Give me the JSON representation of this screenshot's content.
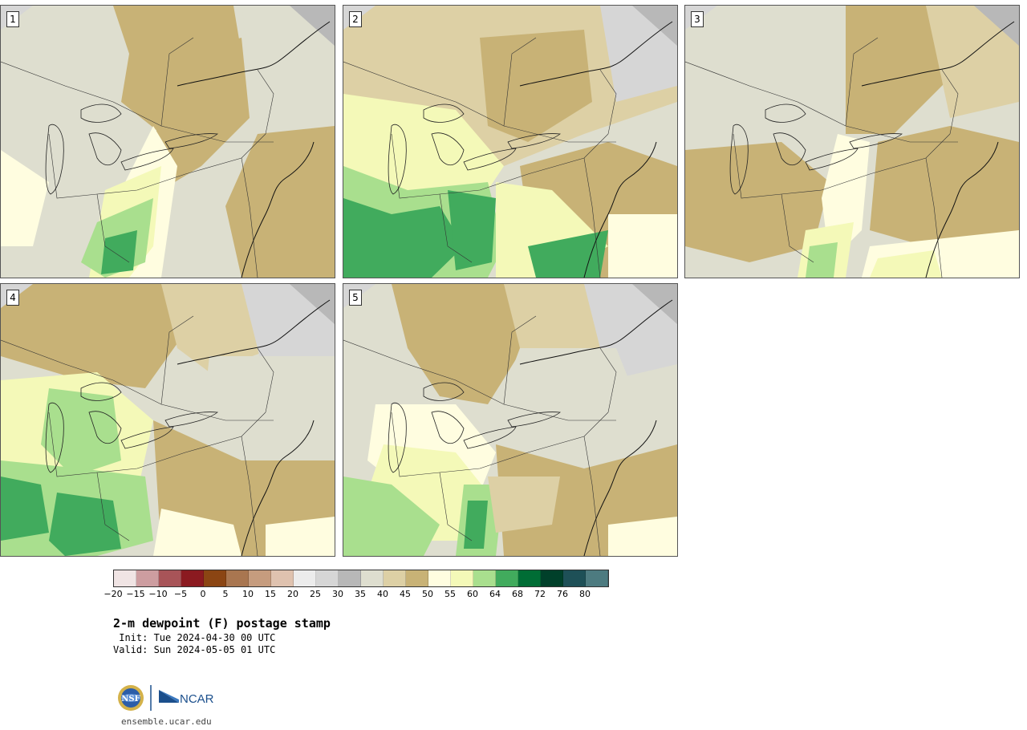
{
  "panels": [
    {
      "label": "1",
      "variant": 1
    },
    {
      "label": "2",
      "variant": 2
    },
    {
      "label": "3",
      "variant": 3
    },
    {
      "label": "4",
      "variant": 4
    },
    {
      "label": "5",
      "variant": 5
    }
  ],
  "colorbar": {
    "colors": [
      "#f0e4e4",
      "#cd9da0",
      "#a85458",
      "#8b1a20",
      "#8b4513",
      "#a97650",
      "#c69c7e",
      "#dfc2af",
      "#ececec",
      "#d6d6d6",
      "#b8b8b8",
      "#dedecf",
      "#ddd0a5",
      "#c8b276",
      "#fffde0",
      "#f4f9b8",
      "#a9df8e",
      "#41ab5d",
      "#006d35",
      "#00402a",
      "#1e5057",
      "#4d7b80"
    ],
    "ticks": [
      "−20",
      "−15",
      "−10",
      "−5",
      "0",
      "5",
      "10",
      "15",
      "20",
      "25",
      "30",
      "35",
      "40",
      "45",
      "50",
      "55",
      "60",
      "64",
      "68",
      "72",
      "76",
      "80"
    ]
  },
  "title": "2-m dewpoint (F) postage stamp",
  "init_line": " Init: Tue 2024-04-30 00 UTC",
  "valid_line": "Valid: Sun 2024-05-05 01 UTC",
  "logo": {
    "nsf": "NSF",
    "ncar": "NCAR"
  },
  "site": "ensemble.ucar.edu"
}
